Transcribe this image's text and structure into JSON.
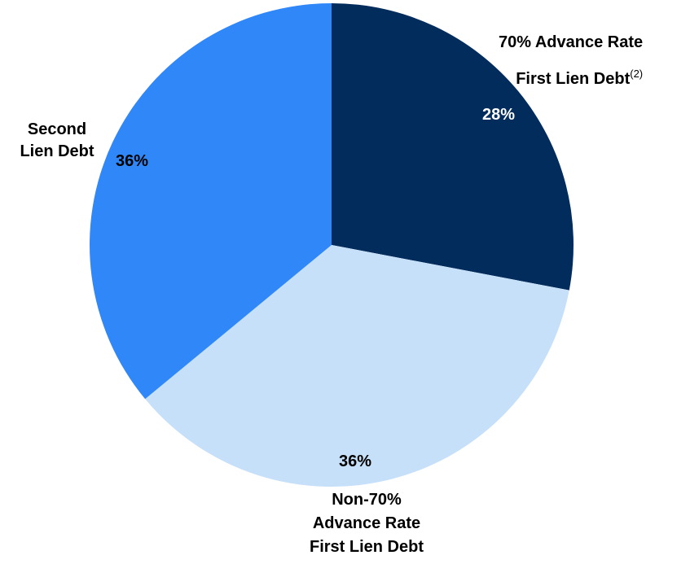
{
  "chart_data": {
    "type": "pie",
    "slices": [
      {
        "label_lines": [
          "70% Advance Rate",
          "First Lien Debt"
        ],
        "footnote": "(2)",
        "value": 28,
        "value_label": "28%",
        "color": "#022c5c",
        "value_label_color": "#ffffff"
      },
      {
        "label_lines": [
          "Non-70%",
          "Advance Rate",
          "First Lien Debt"
        ],
        "footnote": "",
        "value": 36,
        "value_label": "36%",
        "color": "#c7e0fa",
        "value_label_color": "#000000"
      },
      {
        "label_lines": [
          "Second",
          "Lien Debt"
        ],
        "footnote": "",
        "value": 36,
        "value_label": "36%",
        "color": "#3088f8",
        "value_label_color": "#000000"
      }
    ]
  }
}
